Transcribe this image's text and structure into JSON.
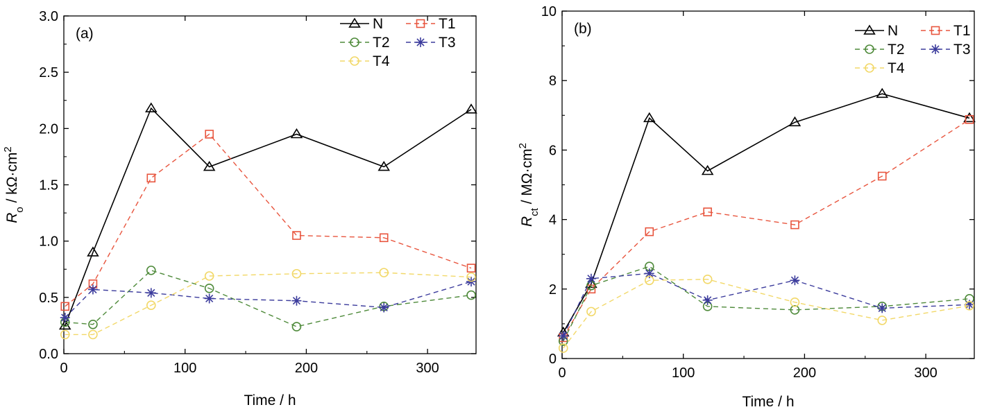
{
  "chart_data": [
    {
      "type": "line",
      "panel_label": "(a)",
      "xlabel": "Time / h",
      "ylabel_symbol": "R",
      "ylabel_sub": "o",
      "ylabel_unit": " / kΩ·cm",
      "ylabel_sup": "2",
      "xlim": [
        0,
        340
      ],
      "ylim": [
        0,
        3.0
      ],
      "xticks": [
        0,
        100,
        200,
        300
      ],
      "yticks": [
        0.0,
        0.5,
        1.0,
        1.5,
        2.0,
        2.5,
        3.0
      ],
      "ytick_decimals": 1,
      "grid": false,
      "legend_position": "top-right",
      "x": [
        1,
        24,
        72,
        120,
        192,
        264,
        336
      ],
      "series": [
        {
          "name": "N",
          "color": "#000000",
          "marker": "triangle",
          "dashed": false,
          "values": [
            0.25,
            0.9,
            2.18,
            1.66,
            1.95,
            1.66,
            2.17
          ]
        },
        {
          "name": "T1",
          "color": "#e8553e",
          "marker": "square",
          "dashed": true,
          "values": [
            0.42,
            0.62,
            1.56,
            1.95,
            1.05,
            1.03,
            0.76
          ]
        },
        {
          "name": "T2",
          "color": "#4e8a3a",
          "marker": "circle",
          "dashed": true,
          "values": [
            0.28,
            0.26,
            0.74,
            0.58,
            0.24,
            0.42,
            0.52
          ]
        },
        {
          "name": "T3",
          "color": "#3b3b9c",
          "marker": "star",
          "dashed": true,
          "values": [
            0.32,
            0.57,
            0.54,
            0.49,
            0.47,
            0.41,
            0.64
          ]
        },
        {
          "name": "T4",
          "color": "#f2d868",
          "marker": "circle",
          "dashed": true,
          "values": [
            0.17,
            0.17,
            0.43,
            0.69,
            0.71,
            0.72,
            0.68
          ]
        }
      ]
    },
    {
      "type": "line",
      "panel_label": "(b)",
      "xlabel": "Time / h",
      "ylabel_symbol": "R",
      "ylabel_sub": "ct",
      "ylabel_unit": " / MΩ·cm",
      "ylabel_sup": "2",
      "xlim": [
        0,
        340
      ],
      "ylim": [
        0,
        10
      ],
      "xticks": [
        0,
        100,
        200,
        300
      ],
      "yticks": [
        0,
        2,
        4,
        6,
        8,
        10
      ],
      "ytick_decimals": 0,
      "grid": false,
      "legend_position": "top-right",
      "x": [
        1,
        24,
        72,
        120,
        192,
        264,
        336
      ],
      "series": [
        {
          "name": "N",
          "color": "#000000",
          "marker": "triangle",
          "dashed": false,
          "values": [
            0.75,
            2.15,
            6.92,
            5.4,
            6.8,
            7.62,
            6.92
          ]
        },
        {
          "name": "T1",
          "color": "#e8553e",
          "marker": "square",
          "dashed": true,
          "values": [
            0.6,
            2.0,
            3.65,
            4.22,
            3.85,
            5.25,
            6.88
          ]
        },
        {
          "name": "T2",
          "color": "#4e8a3a",
          "marker": "circle",
          "dashed": true,
          "values": [
            0.5,
            2.1,
            2.65,
            1.5,
            1.4,
            1.5,
            1.72
          ]
        },
        {
          "name": "T3",
          "color": "#3b3b9c",
          "marker": "star",
          "dashed": true,
          "values": [
            0.65,
            2.3,
            2.45,
            1.68,
            2.25,
            1.45,
            1.55
          ]
        },
        {
          "name": "T4",
          "color": "#f2d868",
          "marker": "circle",
          "dashed": true,
          "values": [
            0.3,
            1.35,
            2.25,
            2.28,
            1.62,
            1.1,
            1.52
          ]
        }
      ]
    }
  ]
}
